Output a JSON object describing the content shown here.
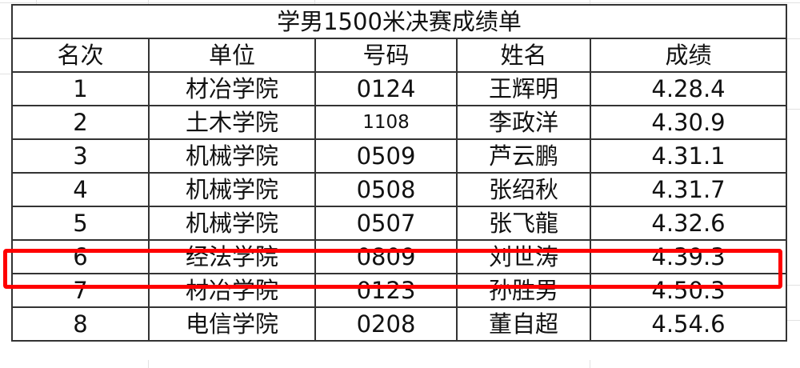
{
  "title": "学男1500米决赛成绩单",
  "headers": [
    "名次",
    "单位",
    "号码",
    "姓名",
    "成绩"
  ],
  "rows": [
    [
      "1",
      "材冶学院",
      "0124",
      "王辉明",
      "4.28.4"
    ],
    [
      "2",
      "土木学院",
      "1108",
      "李政洋",
      "4.30.9"
    ],
    [
      "3",
      "机械学院",
      "0509",
      "芦云鹏",
      "4.31.1"
    ],
    [
      "4",
      "机械学院",
      "0508",
      "张绍秋",
      "4.31.7"
    ],
    [
      "5",
      "机械学院",
      "0507",
      "张飞龍",
      "4.32.6"
    ],
    [
      "6",
      "经法学院",
      "0809",
      "刘世涛",
      "4.39.3"
    ],
    [
      "7",
      "材冶学院",
      "0123",
      "孙胜男",
      "4.50.3"
    ],
    [
      "8",
      "电信学院",
      "0208",
      "董自超",
      "4.54.6"
    ]
  ],
  "highlighted_row": 6,
  "highlight_color": "#ff0000"
}
